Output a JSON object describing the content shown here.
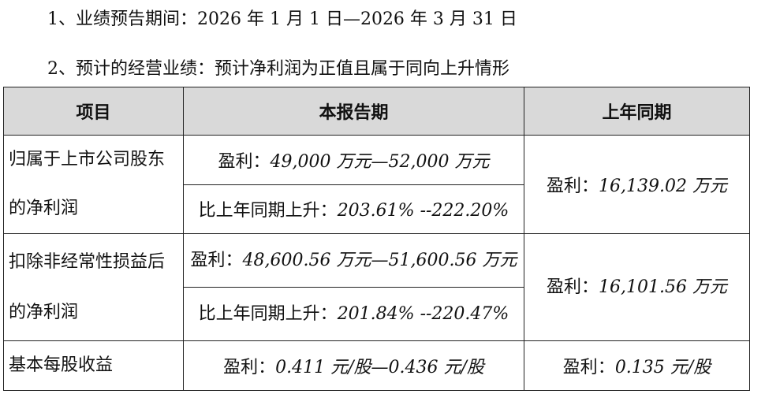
{
  "intro": {
    "line1": "1、业绩预告期间：2026 年 1 月 1 日—2026 年 3 月 31 日",
    "line2": "2、预计的经营业绩：预计净利润为正值且属于同向上升情形"
  },
  "table": {
    "headers": [
      "项目",
      "本报告期",
      "上年同期"
    ],
    "rows": [
      {
        "item": "归属于上市公司股东的净利润",
        "current": [
          {
            "prefix": "盈利：",
            "value": "49,000 万元—52,000 万元"
          },
          {
            "prefix": "比上年同期上升：",
            "value": "203.61% --222.20%"
          }
        ],
        "prior": {
          "prefix": "盈利：",
          "value": "16,139.02 万元"
        }
      },
      {
        "item": "扣除非经常性损益后的净利润",
        "current": [
          {
            "prefix": "盈利：",
            "value": "48,600.56 万元—51,600.56 万元"
          },
          {
            "prefix": "比上年同期上升：",
            "value": "201.84% --220.47%"
          }
        ],
        "prior": {
          "prefix": "盈利：",
          "value": "16,101.56 万元"
        }
      },
      {
        "item": "基本每股收益",
        "current": [
          {
            "prefix": "盈利：",
            "value": "0.411 元/股—0.436 元/股"
          }
        ],
        "prior": {
          "prefix": "盈利：",
          "value": "0.135 元/股"
        }
      }
    ]
  }
}
